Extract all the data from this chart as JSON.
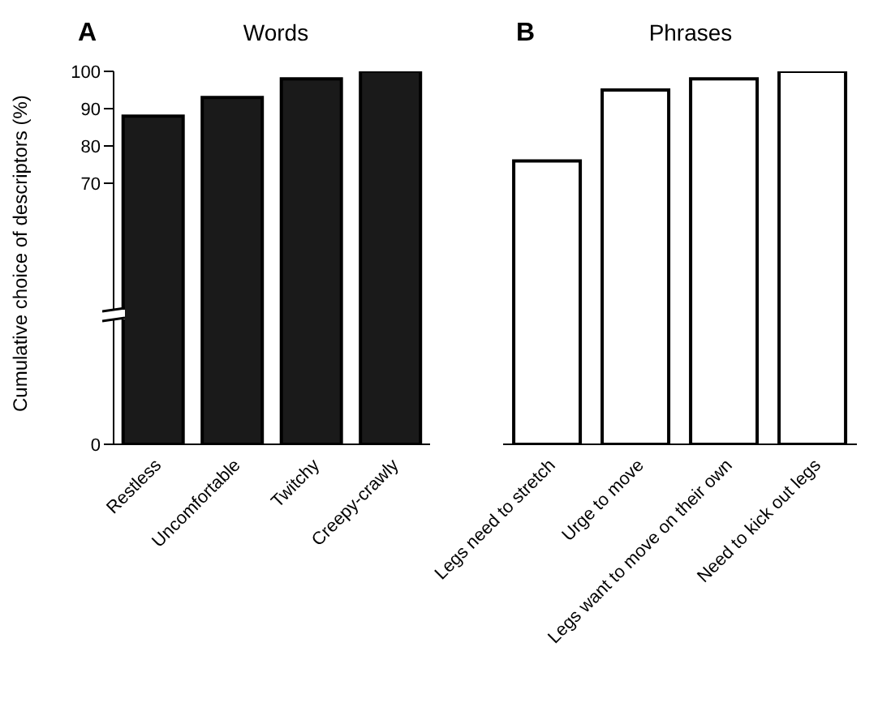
{
  "chart_data": [
    {
      "type": "bar",
      "title": "Words",
      "annotations": [
        "A"
      ],
      "ylabel": "Cumulative choice of descriptors (%)",
      "categories": [
        "Restless",
        "Uncomfortable",
        "Twitchy",
        "Creepy-crawly"
      ],
      "values": [
        88,
        93,
        98,
        100
      ],
      "color": "#1a1a1a",
      "ylim": [
        0,
        100
      ],
      "yticks": [
        0,
        70,
        80,
        90,
        100
      ]
    },
    {
      "type": "bar",
      "title": "Phrases",
      "annotations": [
        "B"
      ],
      "categories": [
        "Legs need to stretch",
        "Urge to move",
        "Legs want to move on their own",
        "Need to kick out legs"
      ],
      "values": [
        76,
        95,
        98,
        100
      ],
      "color": "#ffffff",
      "ylim": [
        0,
        100
      ],
      "tick_labels": "x"
    }
  ]
}
